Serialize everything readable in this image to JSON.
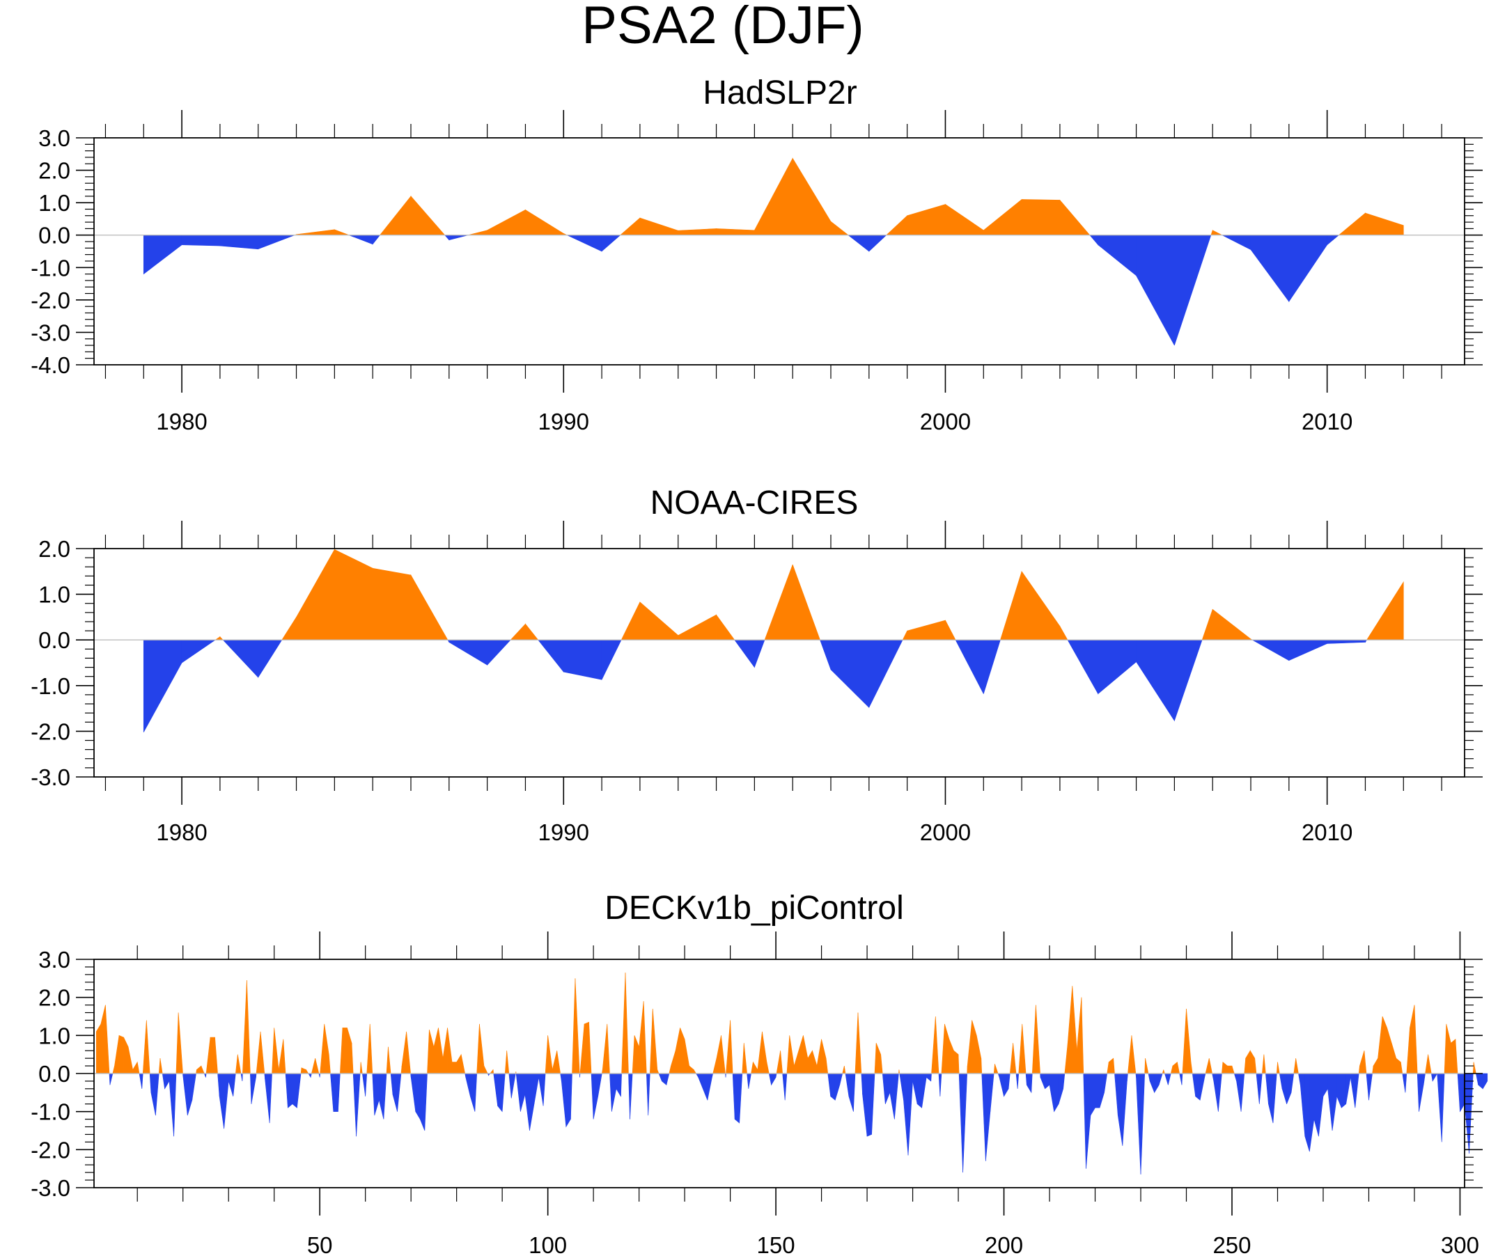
{
  "title": "PSA2 (DJF)",
  "colors": {
    "positive": "#ff8000",
    "negative": "#2442ea",
    "axis": "#000000",
    "zero_line": "#bdbdbd"
  },
  "chart_data": [
    {
      "type": "area",
      "title": "HadSLP2r",
      "xlabel": "",
      "ylabel": "",
      "xlim": [
        1977.7,
        2013.6
      ],
      "ylim": [
        -4.0,
        3.0
      ],
      "xticks": [
        1980,
        1990,
        2000,
        2010
      ],
      "xtick_labels": [
        "1980",
        "1990",
        "2000",
        "2010"
      ],
      "yticks": [
        3.0,
        2.0,
        1.0,
        0.0,
        -1.0,
        -2.0,
        -3.0,
        -4.0
      ],
      "ytick_labels": [
        "3.0",
        "2.0",
        "1.0",
        "0.0",
        "-1.0",
        "-2.0",
        "-3.0",
        "-4.0"
      ],
      "x": [
        1979,
        1980,
        1981,
        1982,
        1983,
        1984,
        1985,
        1986,
        1987,
        1988,
        1989,
        1990,
        1991,
        1992,
        1993,
        1994,
        1995,
        1996,
        1997,
        1998,
        1999,
        2000,
        2001,
        2002,
        2003,
        2004,
        2005,
        2006,
        2007,
        2008,
        2009,
        2010,
        2011,
        2012
      ],
      "values": [
        -1.2,
        -0.3,
        -0.33,
        -0.43,
        0.02,
        0.17,
        -0.28,
        1.2,
        -0.15,
        0.15,
        0.78,
        0.05,
        -0.5,
        0.53,
        0.14,
        0.2,
        0.15,
        2.37,
        0.42,
        -0.5,
        0.6,
        0.95,
        0.15,
        1.1,
        1.08,
        -0.3,
        -1.25,
        -3.4,
        0.15,
        -0.45,
        -2.05,
        -0.3,
        0.68,
        0.3
      ]
    },
    {
      "type": "area",
      "title": "NOAA-CIRES",
      "xlabel": "",
      "ylabel": "",
      "xlim": [
        1977.7,
        2013.6
      ],
      "ylim": [
        -3.0,
        2.0
      ],
      "xticks": [
        1980,
        1990,
        2000,
        2010
      ],
      "xtick_labels": [
        "1980",
        "1990",
        "2000",
        "2010"
      ],
      "yticks": [
        2.0,
        1.0,
        0.0,
        -1.0,
        -2.0,
        -3.0
      ],
      "ytick_labels": [
        "2.0",
        "1.0",
        "0.0",
        "-1.0",
        "-2.0",
        "-3.0"
      ],
      "x": [
        1979,
        1980,
        1981,
        1982,
        1983,
        1984,
        1985,
        1986,
        1987,
        1988,
        1989,
        1990,
        1991,
        1992,
        1993,
        1994,
        1995,
        1996,
        1997,
        1998,
        1999,
        2000,
        2001,
        2002,
        2003,
        2004,
        2005,
        2006,
        2007,
        2008,
        2009,
        2010,
        2011,
        2012
      ],
      "values": [
        -2.02,
        -0.5,
        0.07,
        -0.82,
        0.5,
        1.98,
        1.57,
        1.42,
        -0.05,
        -0.55,
        0.35,
        -0.7,
        -0.87,
        0.83,
        0.1,
        0.55,
        -0.6,
        1.65,
        -0.65,
        -1.48,
        0.2,
        0.43,
        -1.18,
        1.5,
        0.3,
        -1.18,
        -0.48,
        -1.77,
        0.67,
        0.02,
        -0.45,
        -0.08,
        -0.05,
        1.27
      ]
    },
    {
      "type": "area",
      "title": "DECKv1b_piControl",
      "xlabel": "",
      "ylabel": "",
      "xlim": [
        0.5,
        301
      ],
      "ylim": [
        -3.0,
        3.0
      ],
      "xticks": [
        50,
        100,
        150,
        200,
        250,
        300
      ],
      "xtick_labels": [
        "50",
        "100",
        "150",
        "200",
        "250",
        "300"
      ],
      "yticks": [
        3.0,
        2.0,
        1.0,
        0.0,
        -1.0,
        -2.0,
        -3.0
      ],
      "ytick_labels": [
        "3.0",
        "2.0",
        "1.0",
        "0.0",
        "-1.0",
        "-2.0",
        "-3.0"
      ],
      "x_start": 1,
      "values": [
        1.1,
        1.3,
        1.8,
        -0.3,
        0.2,
        1.0,
        0.95,
        0.7,
        0.1,
        0.3,
        -0.4,
        1.4,
        -0.5,
        -1.1,
        0.4,
        -0.4,
        -0.2,
        -1.65,
        1.6,
        -0.05,
        -1.1,
        -0.7,
        0.1,
        0.2,
        -0.1,
        0.95,
        0.95,
        -0.6,
        -1.45,
        -0.2,
        -0.6,
        0.5,
        -0.2,
        2.45,
        -0.8,
        -0.1,
        1.1,
        -0.15,
        -1.3,
        1.2,
        0.1,
        0.9,
        -0.9,
        -0.8,
        -0.9,
        0.15,
        0.1,
        -0.1,
        0.4,
        -0.1,
        1.3,
        0.5,
        -1.0,
        -1.0,
        1.2,
        1.2,
        0.8,
        -1.65,
        0.3,
        -0.6,
        1.3,
        -1.1,
        -0.7,
        -1.2,
        0.7,
        -0.55,
        -1.0,
        0.2,
        1.1,
        -0.1,
        -1.0,
        -1.2,
        -1.5,
        1.15,
        0.7,
        1.2,
        0.4,
        1.2,
        0.3,
        0.3,
        0.5,
        -0.1,
        -0.6,
        -1.0,
        1.3,
        0.2,
        -0.05,
        0.1,
        -0.85,
        -1.0,
        0.6,
        -0.65,
        0.05,
        -1.0,
        -0.55,
        -1.5,
        -0.8,
        -0.1,
        -0.85,
        1.0,
        0.1,
        0.6,
        -0.2,
        -1.4,
        -1.2,
        2.5,
        -0.1,
        1.3,
        1.35,
        -1.2,
        -0.6,
        0.1,
        1.3,
        -1.0,
        -0.4,
        -0.6,
        2.65,
        -1.2,
        1.0,
        0.7,
        1.9,
        -1.1,
        1.7,
        0.1,
        -0.2,
        -0.3,
        0.2,
        0.6,
        1.2,
        0.9,
        0.2,
        0.1,
        -0.1,
        -0.4,
        -0.7,
        -0.1,
        0.4,
        1.0,
        -0.1,
        1.4,
        -1.2,
        -1.3,
        0.8,
        -0.4,
        0.3,
        0.1,
        1.1,
        0.3,
        -0.3,
        -0.1,
        0.6,
        -0.7,
        1.0,
        0.2,
        0.6,
        1.0,
        0.4,
        0.6,
        0.2,
        0.9,
        0.4,
        -0.6,
        -0.7,
        -0.3,
        0.2,
        -0.6,
        -1.0,
        1.6,
        -0.55,
        -1.65,
        -1.6,
        0.8,
        0.5,
        -0.8,
        -0.5,
        -1.2,
        0.1,
        -0.7,
        -2.15,
        -0.2,
        -0.8,
        -0.9,
        -0.1,
        -0.2,
        1.5,
        -0.6,
        1.3,
        0.9,
        0.6,
        0.5,
        -2.6,
        0.2,
        1.4,
        1.0,
        0.4,
        -2.3,
        -1.0,
        0.25,
        -0.1,
        -0.6,
        -0.4,
        0.8,
        -0.4,
        1.3,
        -0.3,
        -0.5,
        1.8,
        -0.1,
        -0.4,
        -0.3,
        -1.0,
        -0.8,
        -0.4,
        0.8,
        2.3,
        0.6,
        2.0,
        -2.5,
        -1.1,
        -0.9,
        -0.9,
        -0.5,
        0.3,
        0.4,
        -1.1,
        -1.9,
        -0.2,
        1.0,
        -0.1,
        -2.65,
        0.4,
        -0.2,
        -0.5,
        -0.3,
        0.1,
        -0.3,
        0.2,
        0.3,
        -0.3,
        1.7,
        0.3,
        -0.6,
        -0.7,
        -0.1,
        0.4,
        -0.2,
        -1.0,
        0.3,
        0.2,
        0.2,
        -0.2,
        -1.0,
        0.4,
        0.6,
        0.4,
        -0.8,
        0.5,
        -0.8,
        -1.3,
        0.3,
        -0.4,
        -0.8,
        -0.5,
        0.4,
        -0.3,
        -1.65,
        -2.05,
        -1.2,
        -1.65,
        -0.6,
        -0.4,
        -1.5,
        -0.6,
        -0.9,
        -0.8,
        -0.1,
        -0.9,
        0.2,
        0.6,
        -0.7,
        0.2,
        0.4,
        1.5,
        1.2,
        0.8,
        0.4,
        0.3,
        -0.5,
        1.2,
        1.8,
        -1.0,
        -0.3,
        0.5,
        -0.2,
        0.0,
        -1.8,
        1.3,
        0.8,
        0.9,
        -1.0,
        -0.8,
        -2.1,
        0.3,
        -0.3,
        -0.4,
        -0.2
      ]
    }
  ]
}
